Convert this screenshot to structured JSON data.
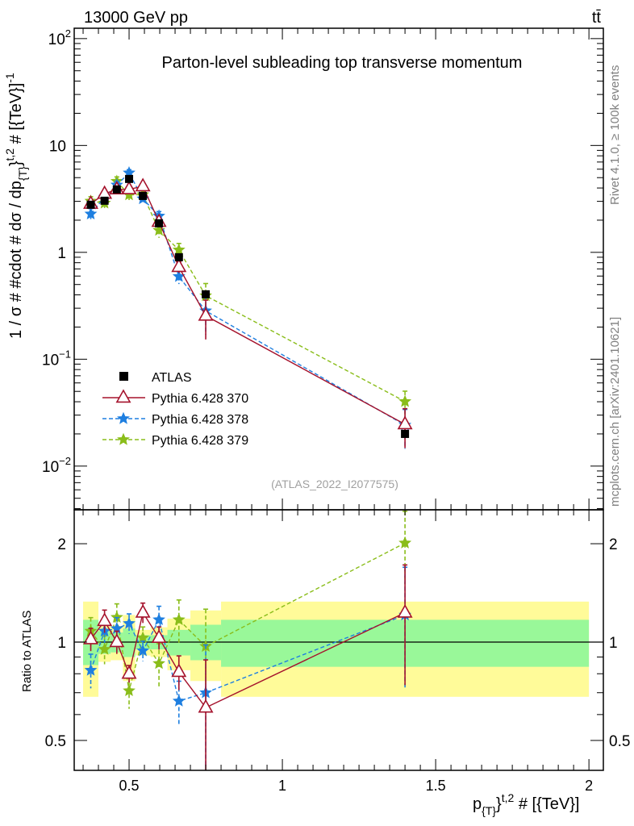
{
  "header": {
    "energy_label": "13000 GeV pp",
    "process_label": "tt̄",
    "rivet_label": "Rivet 4.1.0, ≥ 100k events",
    "source_label": "mcplots.cern.ch [arXiv:2401.10621]",
    "analysis_id": "(ATLAS_2022_I2077575)"
  },
  "chart_data": {
    "type": "line",
    "title": "Parton-level subleading top transverse momentum",
    "ylabel": {
      "main": "1 / σ # #cdot # dσ / dp",
      "sub": "{T}",
      "mid": "}",
      "sup": "t,2",
      "tail": " # [{TeV}]",
      "sup2": "-1"
    },
    "xlabel": {
      "main": "p",
      "sub": "{T}",
      "mid": "}",
      "sup": "t,2",
      "tail": " # [{TeV}]"
    },
    "ratio_ylabel": "Ratio to ATLAS",
    "xlim": [
      0.321,
      2.047
    ],
    "ylim": [
      0.0039,
      125
    ],
    "yscale": "log",
    "ratio_ylim": [
      0.405,
      2.54
    ],
    "x_ticks": [
      {
        "v": 0.5,
        "label": "0.5"
      },
      {
        "v": 1,
        "label": "1"
      },
      {
        "v": 1.5,
        "label": "1.5"
      },
      {
        "v": 2,
        "label": "2"
      }
    ],
    "y_ticks": [
      {
        "v": 100,
        "base": "10",
        "exp": "2"
      },
      {
        "v": 10,
        "base": "10",
        "exp": ""
      },
      {
        "v": 1,
        "base": "1",
        "exp": ""
      },
      {
        "v": 0.1,
        "base": "10",
        "exp": "−1"
      },
      {
        "v": 0.01,
        "base": "10",
        "exp": "−2"
      }
    ],
    "ratio_ticks": [
      {
        "v": 0.5,
        "label": "0.5"
      },
      {
        "v": 1,
        "label": "1"
      },
      {
        "v": 2,
        "label": "2"
      }
    ],
    "bin_edges": [
      0.35,
      0.4,
      0.44,
      0.48,
      0.52,
      0.57,
      0.625,
      0.7,
      0.8,
      2.0
    ],
    "x": [
      0.375,
      0.42,
      0.46,
      0.5,
      0.545,
      0.5975,
      0.6625,
      0.75,
      1.4
    ],
    "data": {
      "name": "ATLAS",
      "values": [
        2.79,
        3.04,
        3.88,
        4.86,
        3.37,
        1.87,
        0.9,
        0.405,
        0.02
      ],
      "color": "#000000"
    },
    "bands": {
      "inner": {
        "low": [
          0.85,
          0.92,
          0.93,
          0.9,
          0.95,
          0.95,
          0.91,
          0.88,
          0.84
        ],
        "high": [
          1.17,
          1.08,
          1.07,
          1.1,
          1.05,
          1.05,
          1.09,
          1.13,
          1.17
        ],
        "color": "#99f899"
      },
      "outer": {
        "low": [
          0.68,
          0.87,
          0.88,
          0.76,
          0.91,
          0.9,
          0.82,
          0.76,
          0.68
        ],
        "high": [
          1.33,
          1.13,
          1.12,
          1.21,
          1.09,
          1.11,
          1.18,
          1.25,
          1.33
        ],
        "color": "#fffb99"
      }
    },
    "series": [
      {
        "name": "Pythia 6.428 370",
        "color": "#a5122c",
        "marker": "triangle",
        "dashed": false,
        "ratio": [
          1.02,
          1.16,
          1.0,
          0.8,
          1.23,
          1.03,
          0.81,
          0.63,
          1.23
        ],
        "rel_err": [
          0.08,
          0.08,
          0.08,
          0.06,
          0.07,
          0.08,
          0.12,
          0.4,
          0.4
        ]
      },
      {
        "name": "Pythia 6.428 378",
        "color": "#1e7fe0",
        "marker": "star",
        "dashed": true,
        "ratio": [
          0.82,
          1.08,
          1.1,
          1.14,
          0.94,
          1.17,
          0.66,
          0.7,
          1.21
        ],
        "rel_err": [
          0.12,
          0.08,
          0.08,
          0.07,
          0.07,
          0.1,
          0.15,
          0.4,
          0.4
        ]
      },
      {
        "name": "Pythia 6.428 379",
        "color": "#8abd1a",
        "marker": "star",
        "dashed": true,
        "ratio": [
          1.08,
          0.95,
          1.19,
          0.71,
          1.03,
          0.86,
          1.17,
          0.97,
          2.01
        ],
        "rel_err": [
          0.1,
          0.1,
          0.1,
          0.12,
          0.08,
          0.15,
          0.15,
          0.3,
          0.25
        ]
      }
    ],
    "legend_position": "lower-left"
  }
}
